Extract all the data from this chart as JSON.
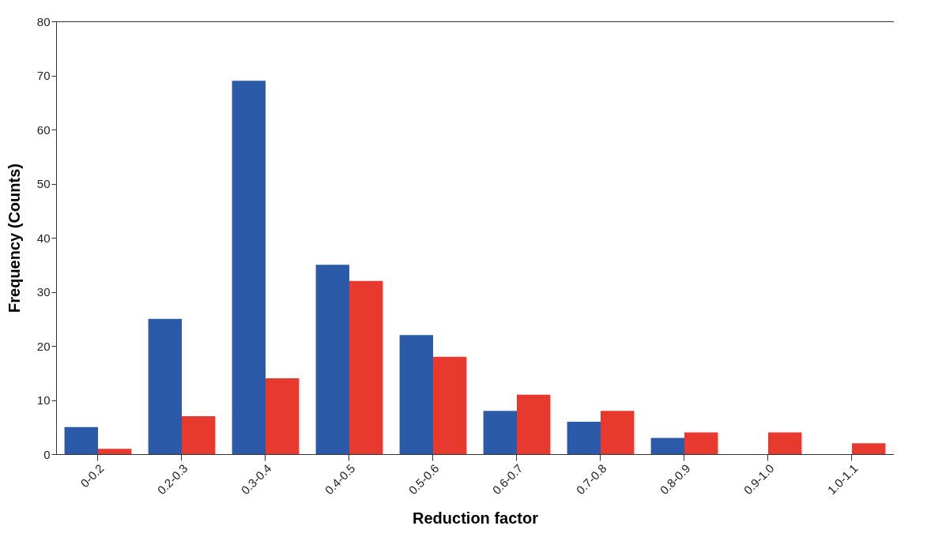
{
  "chart_data": {
    "type": "bar",
    "xlabel": "Reduction factor",
    "ylabel": "Frequency (Counts)",
    "categories": [
      "0-0.2",
      "0.2-0.3",
      "0.3-0.4",
      "0.4-0.5",
      "0.5-0.6",
      "0.6-0.7",
      "0.7-0.8",
      "0.8-0.9",
      "0.9-1.0",
      "1.0-1.1"
    ],
    "series": [
      {
        "color": "#2b5ba8",
        "values": [
          5,
          25,
          69,
          35,
          22,
          8,
          6,
          3,
          null,
          null
        ]
      },
      {
        "color": "#e8392f",
        "values": [
          1,
          7,
          14,
          32,
          18,
          11,
          8,
          4,
          4,
          2
        ]
      }
    ],
    "ylim": [
      0,
      80
    ],
    "yticks": [
      0,
      10,
      20,
      30,
      40,
      50,
      60,
      70,
      80
    ],
    "grid": false,
    "legend": false
  }
}
